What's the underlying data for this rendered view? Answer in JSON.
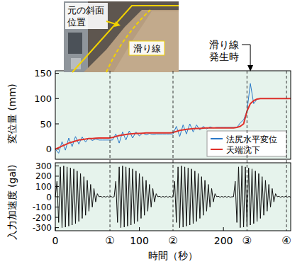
{
  "chart_data": [
    {
      "type": "line",
      "ylabel": "変位量 (mm)",
      "x": [
        0,
        4,
        8,
        12,
        16,
        20,
        24,
        28,
        32,
        36,
        40,
        44,
        48,
        52,
        56,
        60,
        64,
        68,
        72,
        76,
        80,
        84,
        88,
        92,
        96,
        100,
        104,
        108,
        112,
        116,
        120,
        124,
        128,
        132,
        136,
        140,
        144,
        148,
        152,
        156,
        160,
        164,
        168,
        172,
        176,
        180,
        184,
        188,
        192,
        196,
        200,
        204,
        208,
        212,
        216,
        220,
        224,
        228,
        232,
        236,
        240,
        244,
        248,
        252,
        256,
        260,
        264,
        268,
        272,
        276,
        280
      ],
      "xlim": [
        0,
        280
      ],
      "ylim": [
        -20,
        155
      ],
      "yticks": [
        0,
        50,
        100,
        150
      ],
      "tick_labels": "y",
      "legend": "lower right",
      "series": [
        {
          "name": "法尻水平変位",
          "color": "#2a78c8",
          "values": [
            0,
            -8,
            15,
            -2,
            22,
            5,
            25,
            10,
            24,
            14,
            22,
            17,
            20,
            18,
            18,
            18,
            18,
            18,
            30,
            12,
            34,
            18,
            36,
            22,
            34,
            26,
            32,
            28,
            31,
            29,
            30,
            30,
            30,
            30,
            30,
            30,
            45,
            25,
            48,
            30,
            50,
            34,
            48,
            38,
            45,
            40,
            44,
            42,
            43,
            43,
            43,
            43,
            43,
            43,
            43,
            52,
            58,
            75,
            130,
            90,
            99,
            100,
            100,
            100,
            100,
            100,
            100,
            100,
            100,
            100,
            100
          ]
        },
        {
          "name": "天端沈下",
          "color": "#e0302a",
          "values": [
            0,
            3,
            6,
            9,
            12,
            14,
            16,
            18,
            19,
            20,
            21,
            21,
            21.5,
            22,
            22,
            22,
            22,
            23,
            25,
            27,
            28,
            29,
            30,
            30.5,
            31,
            31,
            31.5,
            32,
            32,
            32,
            32,
            32,
            32,
            32,
            32,
            33,
            35,
            37,
            38,
            39,
            40,
            40.5,
            41,
            41,
            41.5,
            42,
            42,
            42,
            42,
            42,
            42,
            42,
            42,
            42,
            43,
            45,
            50,
            75,
            90,
            96,
            99,
            100,
            100,
            100,
            100,
            100,
            100,
            100,
            100,
            100,
            100
          ]
        }
      ],
      "annotations": [
        {
          "x": 232,
          "lines": [
            "滑り線",
            "発生時"
          ]
        }
      ],
      "inset": {
        "labels": [
          [
            "元の斜面",
            "位置"
          ],
          [
            "滑り線"
          ]
        ]
      }
    },
    {
      "type": "line",
      "ylabel": "入力加速度 (gal)",
      "xlabel": "時間（秒）",
      "x": [
        0,
        2,
        4,
        6,
        8,
        10,
        12,
        14,
        16,
        18,
        20,
        22,
        24,
        26,
        28,
        30,
        32,
        34,
        36,
        38,
        40,
        42,
        44,
        46,
        48,
        50,
        52,
        54,
        56,
        58,
        60,
        62,
        64,
        66,
        68,
        70,
        72,
        74,
        76,
        78,
        80,
        82,
        84,
        86,
        88,
        90,
        92,
        94,
        96,
        98,
        100,
        102,
        104,
        106,
        108,
        110,
        112,
        114,
        116,
        118,
        120,
        122,
        124,
        126,
        128,
        130,
        132,
        134,
        136,
        138,
        140,
        142,
        144,
        146,
        148,
        150,
        152,
        154,
        156,
        158,
        160,
        162,
        164,
        166,
        168,
        170,
        172,
        174,
        176,
        178,
        180,
        182,
        184,
        186,
        188,
        190,
        192,
        194,
        196,
        198,
        200,
        202,
        204,
        206,
        208,
        210,
        212,
        214,
        216,
        218,
        220,
        222,
        224,
        226,
        228,
        230,
        232,
        234,
        236,
        238,
        240,
        242,
        244,
        246,
        248,
        250,
        252,
        254,
        256,
        258,
        260,
        262,
        264,
        266,
        268,
        270,
        272,
        274,
        276,
        278,
        280
      ],
      "xlim": [
        0,
        280
      ],
      "ylim": [
        -330,
        330
      ],
      "xticks": [
        0,
        100,
        200
      ],
      "yticks": [
        -300,
        -200,
        -100,
        0,
        100,
        200,
        300
      ],
      "stages": [
        {
          "value": 65,
          "label": "①"
        },
        {
          "value": 140,
          "label": "②"
        },
        {
          "value": 228,
          "label": "③"
        },
        {
          "value": 275,
          "label": "④"
        }
      ],
      "series": [
        {
          "color": "#111111",
          "values": [
            0,
            150,
            -250,
            290,
            -300,
            300,
            -295,
            290,
            -285,
            280,
            -275,
            270,
            -260,
            250,
            -240,
            225,
            -210,
            195,
            -180,
            160,
            -140,
            120,
            -100,
            80,
            -50,
            30,
            0,
            5,
            -5,
            4,
            -4,
            5,
            -5,
            4,
            -4,
            0,
            150,
            -250,
            290,
            -300,
            300,
            -295,
            290,
            -285,
            280,
            -275,
            270,
            -260,
            250,
            -240,
            225,
            -210,
            195,
            -180,
            160,
            -140,
            120,
            -100,
            80,
            -50,
            30,
            0,
            5,
            -5,
            4,
            -4,
            5,
            -5,
            4,
            -4,
            0,
            150,
            -250,
            290,
            -300,
            300,
            -295,
            290,
            -285,
            280,
            -275,
            270,
            -260,
            250,
            -240,
            225,
            -210,
            195,
            -180,
            160,
            -140,
            120,
            -100,
            80,
            -50,
            30,
            0,
            5,
            -5,
            4,
            -4,
            5,
            -5,
            4,
            -4,
            0,
            0,
            150,
            -250,
            290,
            -300,
            300,
            -295,
            290,
            -285,
            280,
            -275,
            270,
            -260,
            250,
            -240,
            225,
            -210,
            195,
            -180,
            160,
            -140,
            120,
            -100,
            80,
            -50,
            30,
            0,
            5,
            -5,
            4,
            -4,
            5,
            -5,
            4,
            -4
          ]
        }
      ]
    }
  ]
}
